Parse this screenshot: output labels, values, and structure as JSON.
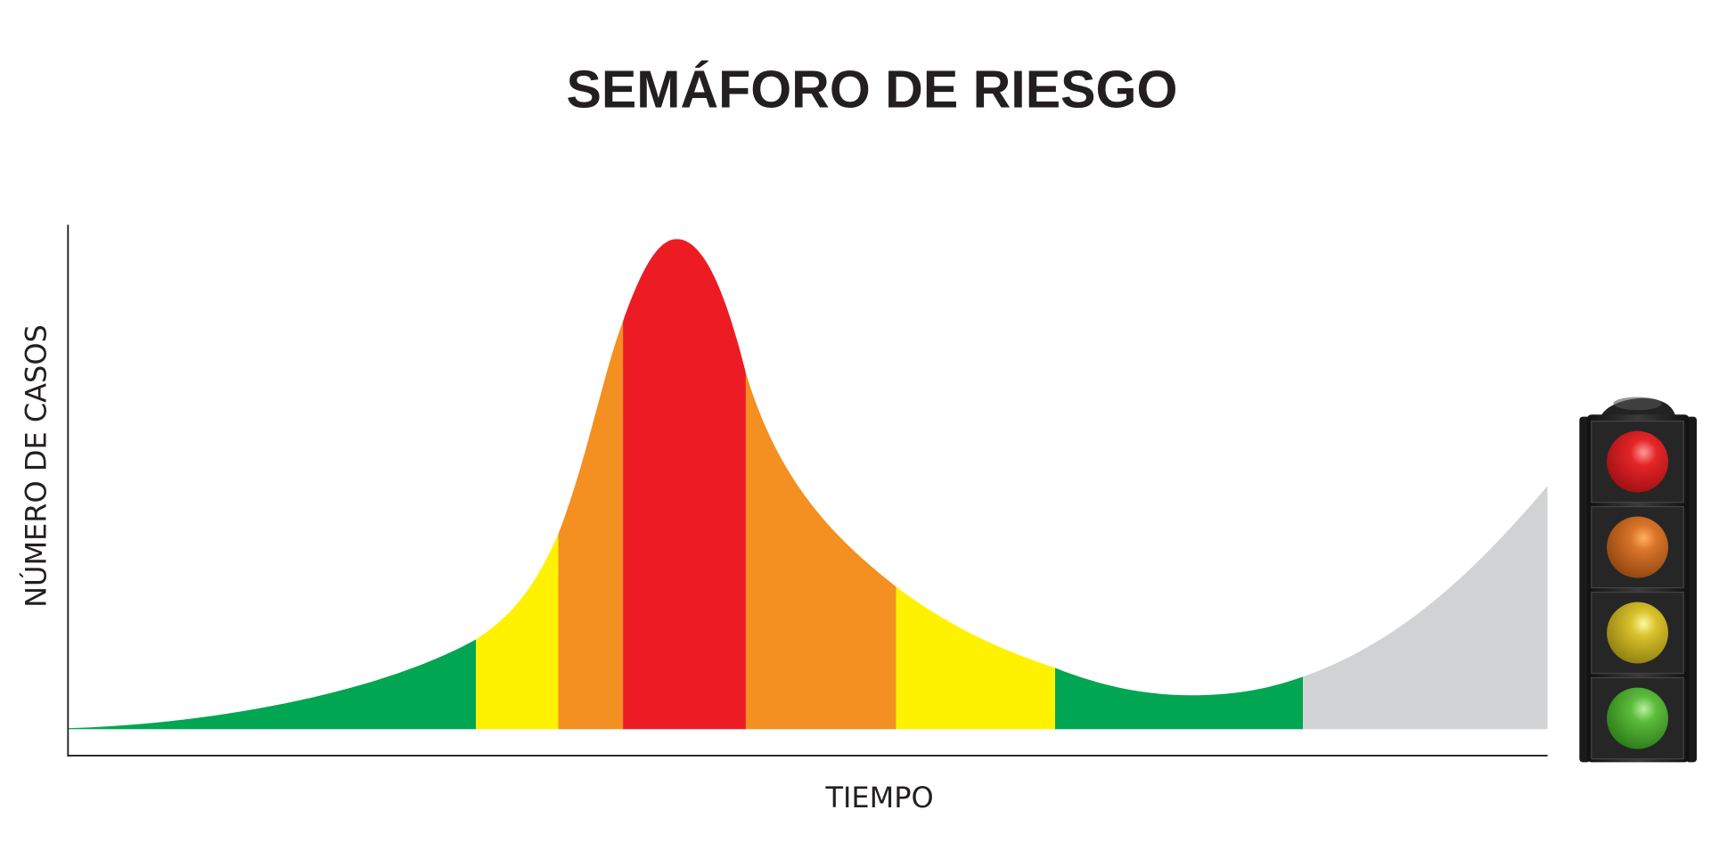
{
  "title": "SEMÁFORO DE RIESGO",
  "y_axis_label": "NÚMERO DE CASOS",
  "x_axis_label": "TIEMPO"
}
